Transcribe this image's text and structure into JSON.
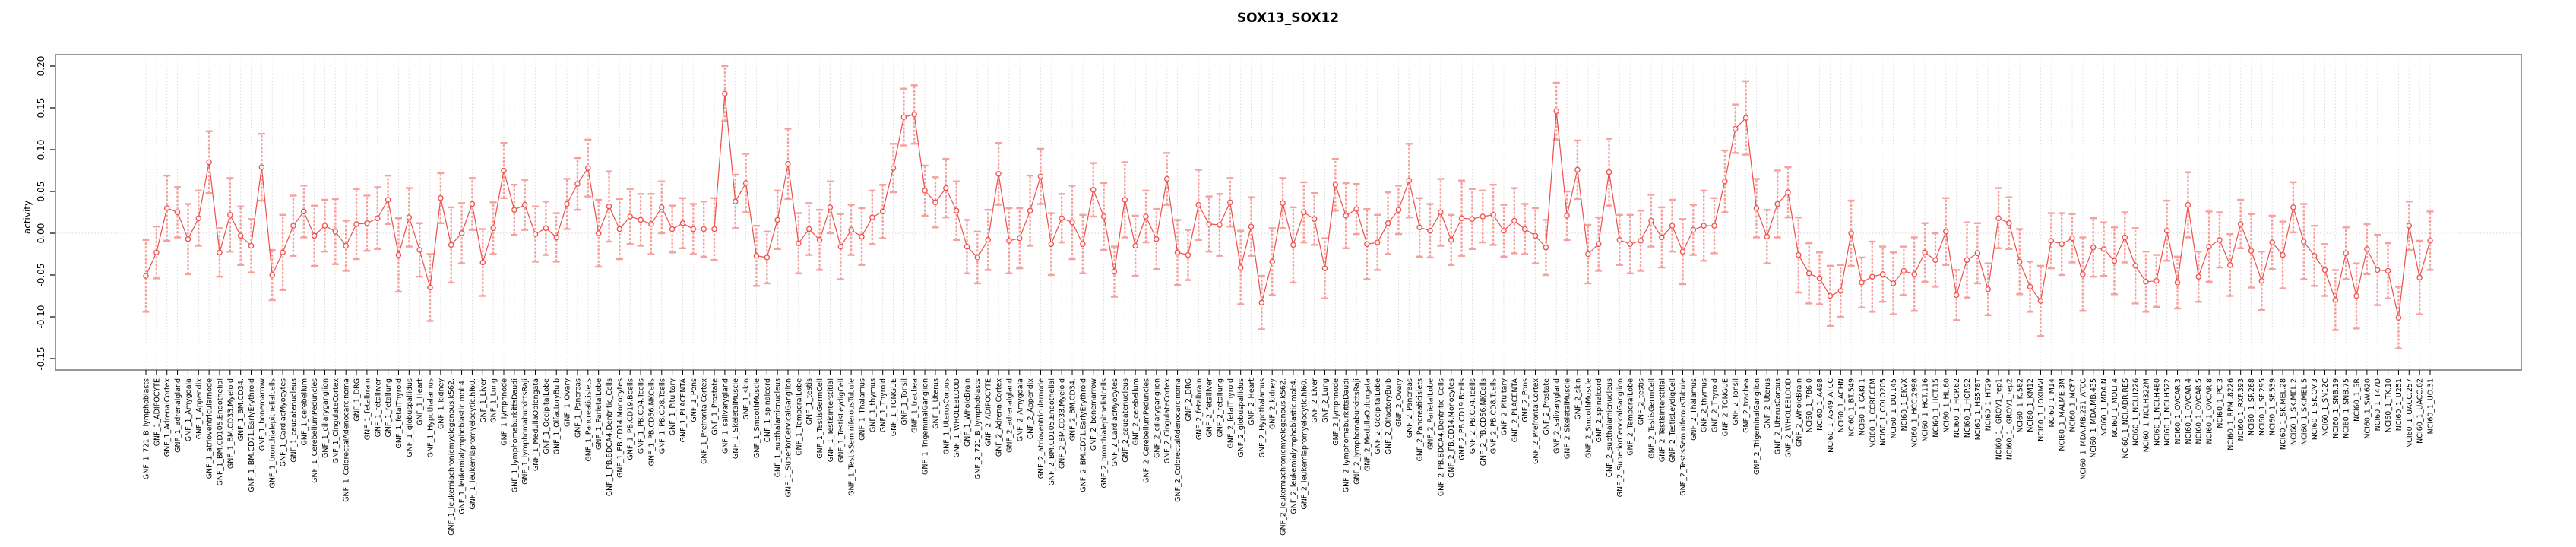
{
  "title": "SOX13_SOX12",
  "chart_data": {
    "type": "line",
    "subtype": "point-errorbar",
    "title": "SOX13_SOX12",
    "xlabel": "",
    "ylabel": "activity",
    "ylim": [
      -0.163,
      0.213
    ],
    "yticks": [
      "-0.15",
      "-0.10",
      "-0.05",
      "0.00",
      "0.05",
      "0.10",
      "0.15",
      "0.20"
    ],
    "ytick_values": [
      -0.15,
      -0.1,
      -0.05,
      0.0,
      0.05,
      0.1,
      0.15,
      0.2
    ],
    "grid": "vertical-dotted-per-category",
    "zero_line": true,
    "legend": "none",
    "point_color": "#ee4f4b",
    "errorbar_color": "#f5a09d",
    "grid_color": "#d9d9d9",
    "box_color": "#7f7f7f",
    "categories": [
      "GNF_1_721_B_lymphoblasts",
      "GNF_1_ADIPOCYTE",
      "GNF_1_AdrenalCortex",
      "GNF_1_adrenalgland",
      "GNF_1_Amygdala",
      "GNF_1_Appendix",
      "GNF_1_atrioventricularnode",
      "GNF_1_BM.CD105.Endothelial",
      "GNF_1_BM.CD33.Myeloid",
      "GNF_1_BM.CD34.",
      "GNF_1_BM.CD71.EarlyErythroid",
      "GNF_1_bonemarrow",
      "GNF_1_bronchialepithelialcells",
      "GNF_1_CardiacMyocytes",
      "GNF_1_caudatenucleus",
      "GNF_1_cerebellum",
      "GNF_1_CerebellumPeduncles",
      "GNF_1_ciliaryganglion",
      "GNF_1_CingulateCortex",
      "GNF_1_ColorectalAdenocarcinoma",
      "GNF_1_DRG",
      "GNF_1_fetalbrain",
      "GNF_1_fetalliver",
      "GNF_1_fetallung",
      "GNF_1_fetalThyroid",
      "GNF_1_globuspallidus",
      "GNF_1_Heart",
      "GNF_1_Hypothalamus",
      "GNF_1_kidney",
      "GNF_1_leukemiachronicmyelogenous.k562.",
      "GNF_1_leukemialymphoblastic.molt4.",
      "GNF_1_leukemiapromyelocytic.hl60.",
      "GNF_1_Liver",
      "GNF_1_Lung",
      "GNF_1_lymphnode",
      "GNF_1_lymphomaburkittsDaudi",
      "GNF_1_lymphomaburkittsRaji",
      "GNF_1_MedullaOblongata",
      "GNF_1_OccipitalLobe",
      "GNF_1_OlfactoryBulb",
      "GNF_1_Ovary",
      "GNF_1_Pancreas",
      "GNF_1_Pancreaticislets",
      "GNF_1_ParietalLobe",
      "GNF_1_PB.BDCA4.Dentritic_Cells",
      "GNF_1_PB.CD14.Monocytes",
      "GNF_1_PB.CD19.Bcells",
      "GNF_1_PB.CD4.Tcells",
      "GNF_1_PB.CD56.NKCells",
      "GNF_1_PB.CD8.Tcells",
      "GNF_1_Pituitary",
      "GNF_1_PLACENTA",
      "GNF_1_Pons",
      "GNF_1_PrefrontalCortex",
      "GNF_1_Prostate",
      "GNF_1_salivarygland",
      "GNF_1_SkeletalMuscle",
      "GNF_1_skin",
      "GNF_1_SmoothMuscle",
      "GNF_1_spinalcord",
      "GNF_1_subthalamicnucleus",
      "GNF_1_SuperiorCervicalGanglion",
      "GNF_1_TemporalLobe",
      "GNF_1_testis",
      "GNF_1_TestisGermCell",
      "GNF_1_TestisInterstitial",
      "GNF_1_TestisLeydigCell",
      "GNF_1_TestisSeminiferousTubule",
      "GNF_1_Thalamus",
      "GNF_1_thymus",
      "GNF_1_Thyroid",
      "GNF_1_TONGUE",
      "GNF_1_Tonsil",
      "GNF_1_trachea",
      "GNF_1_TrigeminalGanglion",
      "GNF_1_Uterus",
      "GNF_1_UterusCorpus",
      "GNF_1_WHOLEBLOOD",
      "GNF_1_WholeBrain",
      "GNF_2_721_B_lymphoblasts",
      "GNF_2_ADIPOCYTE",
      "GNF_2_AdrenalCortex",
      "GNF_2_adrenalgland",
      "GNF_2_Amygdala",
      "GNF_2_Appendix",
      "GNF_2_atrioventricularnode",
      "GNF_2_BM.CD105.Endothelial",
      "GNF_2_BM.CD33.Myeloid",
      "GNF_2_BM.CD34.",
      "GNF_2_BM.CD71.EarlyErythroid",
      "GNF_2_bonemarrow",
      "GNF_2_bronchialepithelialcells",
      "GNF_2_CardiacMyocytes",
      "GNF_2_caudatenucleus",
      "GNF_2_cerebellum",
      "GNF_2_CerebellumPeduncles",
      "GNF_2_ciliaryganglion",
      "GNF_2_CingulateCortex",
      "GNF_2_ColorectalAdenocarcinoma",
      "GNF_2_DRG",
      "GNF_2_fetalbrain",
      "GNF_2_fetalliver",
      "GNF_2_fetallung",
      "GNF_2_fetalThyroid",
      "GNF_2_globuspallidus",
      "GNF_2_Heart",
      "GNF_2_Hypothalamus",
      "GNF_2_kidney",
      "GNF_2_leukemiachronicmyelogenous.k562.",
      "GNF_2_leukemialymphoblastic.molt4.",
      "GNF_2_leukemiapromyelocytic.hl60.",
      "GNF_2_Liver",
      "GNF_2_Lung",
      "GNF_2_lymphnode",
      "GNF_2_lymphomaburkittsDaudi",
      "GNF_2_lymphomaburkittsRaji",
      "GNF_2_MedullaOblongata",
      "GNF_2_OccipitalLobe",
      "GNF_2_OlfactoryBulb",
      "GNF_2_Ovary",
      "GNF_2_Pancreas",
      "GNF_2_Pancreaticislets",
      "GNF_2_ParietalLobe",
      "GNF_2_PB.BDCA4.Dentritic_Cells",
      "GNF_2_PB.CD14.Monocytes",
      "GNF_2_PB.CD19.Bcells",
      "GNF_2_PB.CD4.Tcells",
      "GNF_2_PB.CD56.NKCells",
      "GNF_2_PB.CD8.Tcells",
      "GNF_2_Pituitary",
      "GNF_2_PLACENTA",
      "GNF_2_Pons",
      "GNF_2_PrefrontalCortex",
      "GNF_2_Prostate",
      "GNF_2_salivarygland",
      "GNF_2_SkeletalMuscle",
      "GNF_2_skin",
      "GNF_2_SmoothMuscle",
      "GNF_2_spinalcord",
      "GNF_2_subthalamicnucleus",
      "GNF_2_SuperiorCervicalGanglion",
      "GNF_2_TemporalLobe",
      "GNF_2_testis",
      "GNF_2_TestisGermCell",
      "GNF_2_TestisInterstitial",
      "GNF_2_TestisLeydigCell",
      "GNF_2_TestisSeminiferousTubule",
      "GNF_2_Thalamus",
      "GNF_2_thymus",
      "GNF_2_Thyroid",
      "GNF_2_TONGUE",
      "GNF_2_Tonsil",
      "GNF_2_trachea",
      "GNF_2_TrigeminalGanglion",
      "GNF_2_Uterus",
      "GNF_2_UterusCorpus",
      "GNF_2_WHOLEBLOOD",
      "GNF_2_WholeBrain",
      "NCI60_1_786.0",
      "NCI60_1_A498",
      "NCI60_1_A549_ATCC",
      "NCI60_1_ACHN",
      "NCI60_1_BT.549",
      "NCI60_1_CAKI.1",
      "NCI60_1_CCRF.CEM",
      "NCI60_1_COLO205",
      "NCI60_1_DU.145",
      "NCI60_1_EKVX",
      "NCI60_1_HCC.2998",
      "NCI60_1_HCT.116",
      "NCI60_1_HCT.15",
      "NCI60_1_HL.60",
      "NCI60_1_HOP.62",
      "NCI60_1_HOP.92",
      "NCI60_1_HS578T",
      "NCI60_1_HT29",
      "NCI60_1_IGROV1_rep1",
      "NCI60_1_IGROV1_rep2",
      "NCI60_1_K.562",
      "NCI60_1_KM12",
      "NCI60_1_LOXIMVI",
      "NCI60_1_M14",
      "NCI60_1_MALME.3M",
      "NCI60_1_MCF7",
      "NCI60_1_MDA.MB.231_ATCC",
      "NCI60_1_MDA.MB.435",
      "NCI60_1_MDA.N",
      "NCI60_1_MOLT.4",
      "NCI60_1_NCI.ADR.RES",
      "NCI60_1_NCI.H226",
      "NCI60_1_NCI.H322M",
      "NCI60_1_NCI.H460",
      "NCI60_1_NCI.H522",
      "NCI60_1_OVCAR.3",
      "NCI60_1_OVCAR.4",
      "NCI60_1_OVCAR.5",
      "NCI60_1_OVCAR.8",
      "NCI60_1_PC.3",
      "NCI60_1_RPMI.8226",
      "NCI60_1_RXF.393",
      "NCI60_1_SF.268",
      "NCI60_1_SF.295",
      "NCI60_1_SF.539",
      "NCI60_1_SK.MEL.28",
      "NCI60_1_SK.MEL.2",
      "NCI60_1_SK.MEL.5",
      "NCI60_1_SK.OV.3",
      "NCI60_1_SN12C",
      "NCI60_1_SNB.19",
      "NCI60_1_SNB.75",
      "NCI60_1_SR",
      "NCI60_1_SW.620",
      "NCI60_1_T47D",
      "NCI60_1_TK.10",
      "NCI60_1_U251",
      "NCI60_1_UACC.257",
      "NCI60_1_UACC.62",
      "NCI60_1_UO.31"
    ],
    "values": [
      -0.051,
      -0.023,
      0.03,
      0.025,
      -0.007,
      0.018,
      0.085,
      -0.023,
      0.022,
      -0.003,
      -0.015,
      0.079,
      -0.05,
      -0.023,
      0.009,
      0.026,
      -0.003,
      0.009,
      0.002,
      -0.015,
      0.011,
      0.012,
      0.018,
      0.04,
      -0.026,
      0.019,
      -0.02,
      -0.065,
      0.042,
      -0.014,
      0.0,
      0.035,
      -0.035,
      0.006,
      0.075,
      0.028,
      0.034,
      -0.001,
      0.006,
      -0.005,
      0.035,
      0.059,
      0.078,
      0.0,
      0.032,
      0.005,
      0.02,
      0.016,
      0.011,
      0.031,
      0.005,
      0.012,
      0.005,
      0.005,
      0.005,
      0.167,
      0.038,
      0.06,
      -0.027,
      -0.029,
      0.016,
      0.083,
      -0.012,
      0.005,
      -0.008,
      0.031,
      -0.016,
      0.004,
      -0.004,
      0.019,
      0.026,
      0.078,
      0.139,
      0.142,
      0.051,
      0.037,
      0.054,
      0.027,
      -0.016,
      -0.029,
      -0.008,
      0.071,
      -0.009,
      -0.006,
      0.027,
      0.068,
      -0.013,
      0.018,
      0.013,
      -0.013,
      0.052,
      0.02,
      -0.046,
      0.04,
      -0.015,
      0.02,
      -0.007,
      0.065,
      -0.023,
      -0.026,
      0.034,
      0.011,
      0.01,
      0.037,
      -0.041,
      0.008,
      -0.083,
      -0.034,
      0.036,
      -0.014,
      0.025,
      0.017,
      -0.042,
      0.058,
      0.021,
      0.029,
      -0.013,
      -0.011,
      0.012,
      0.028,
      0.063,
      0.007,
      0.003,
      0.025,
      -0.008,
      0.018,
      0.017,
      0.02,
      0.022,
      0.003,
      0.015,
      0.005,
      -0.003,
      -0.017,
      0.146,
      0.021,
      0.076,
      -0.025,
      -0.013,
      0.073,
      -0.008,
      -0.013,
      -0.009,
      0.015,
      -0.005,
      0.009,
      -0.022,
      0.004,
      0.009,
      0.009,
      0.062,
      0.125,
      0.138,
      0.03,
      -0.004,
      0.035,
      0.049,
      -0.026,
      -0.048,
      -0.054,
      -0.075,
      -0.069,
      0.0,
      -0.059,
      -0.052,
      -0.049,
      -0.06,
      -0.045,
      -0.049,
      -0.023,
      -0.032,
      0.002,
      -0.074,
      -0.032,
      -0.024,
      -0.067,
      0.018,
      0.012,
      -0.034,
      -0.064,
      -0.081,
      -0.009,
      -0.013,
      -0.006,
      -0.049,
      -0.017,
      -0.019,
      -0.033,
      -0.005,
      -0.039,
      -0.058,
      -0.057,
      0.003,
      -0.059,
      0.034,
      -0.052,
      -0.016,
      -0.008,
      -0.038,
      0.011,
      -0.021,
      -0.057,
      -0.011,
      -0.026,
      0.031,
      -0.01,
      -0.027,
      -0.044,
      -0.08,
      -0.024,
      -0.075,
      -0.019,
      -0.044,
      -0.045,
      -0.101,
      0.009,
      -0.053,
      -0.009
    ],
    "se": [
      0.043,
      0.031,
      0.039,
      0.03,
      0.042,
      0.033,
      0.037,
      0.029,
      0.044,
      0.035,
      0.032,
      0.04,
      0.03,
      0.045,
      0.036,
      0.031,
      0.036,
      0.031,
      0.039,
      0.03,
      0.042,
      0.033,
      0.037,
      0.029,
      0.044,
      0.035,
      0.032,
      0.04,
      0.03,
      0.045,
      0.036,
      0.031,
      0.04,
      0.031,
      0.033,
      0.03,
      0.03,
      0.033,
      0.032,
      0.029,
      0.03,
      0.031,
      0.034,
      0.04,
      0.042,
      0.036,
      0.033,
      0.031,
      0.036,
      0.031,
      0.028,
      0.03,
      0.03,
      0.033,
      0.037,
      0.033,
      0.032,
      0.035,
      0.036,
      0.031,
      0.035,
      0.042,
      0.036,
      0.031,
      0.036,
      0.031,
      0.039,
      0.03,
      0.034,
      0.032,
      0.032,
      0.029,
      0.034,
      0.035,
      0.03,
      0.03,
      0.035,
      0.035,
      0.032,
      0.031,
      0.036,
      0.037,
      0.039,
      0.036,
      0.042,
      0.033,
      0.037,
      0.029,
      0.044,
      0.035,
      0.032,
      0.04,
      0.03,
      0.045,
      0.036,
      0.031,
      0.036,
      0.031,
      0.039,
      0.03,
      0.042,
      0.033,
      0.037,
      0.029,
      0.044,
      0.035,
      0.032,
      0.04,
      0.03,
      0.045,
      0.036,
      0.031,
      0.036,
      0.031,
      0.039,
      0.03,
      0.042,
      0.033,
      0.037,
      0.029,
      0.044,
      0.035,
      0.032,
      0.04,
      0.03,
      0.045,
      0.036,
      0.031,
      0.036,
      0.031,
      0.039,
      0.03,
      0.033,
      0.033,
      0.034,
      0.029,
      0.035,
      0.035,
      0.032,
      0.04,
      0.03,
      0.035,
      0.036,
      0.031,
      0.036,
      0.031,
      0.039,
      0.03,
      0.042,
      0.033,
      0.037,
      0.029,
      0.044,
      0.035,
      0.032,
      0.04,
      0.03,
      0.045,
      0.036,
      0.031,
      0.036,
      0.031,
      0.039,
      0.03,
      0.042,
      0.033,
      0.037,
      0.029,
      0.044,
      0.035,
      0.032,
      0.04,
      0.03,
      0.045,
      0.036,
      0.031,
      0.036,
      0.031,
      0.039,
      0.03,
      0.042,
      0.033,
      0.037,
      0.029,
      0.044,
      0.035,
      0.032,
      0.04,
      0.03,
      0.045,
      0.036,
      0.031,
      0.036,
      0.031,
      0.039,
      0.03,
      0.042,
      0.033,
      0.037,
      0.029,
      0.044,
      0.035,
      0.032,
      0.04,
      0.03,
      0.045,
      0.036,
      0.031,
      0.036,
      0.031,
      0.039,
      0.03,
      0.042,
      0.033,
      0.037,
      0.029,
      0.044,
      0.035
    ]
  }
}
